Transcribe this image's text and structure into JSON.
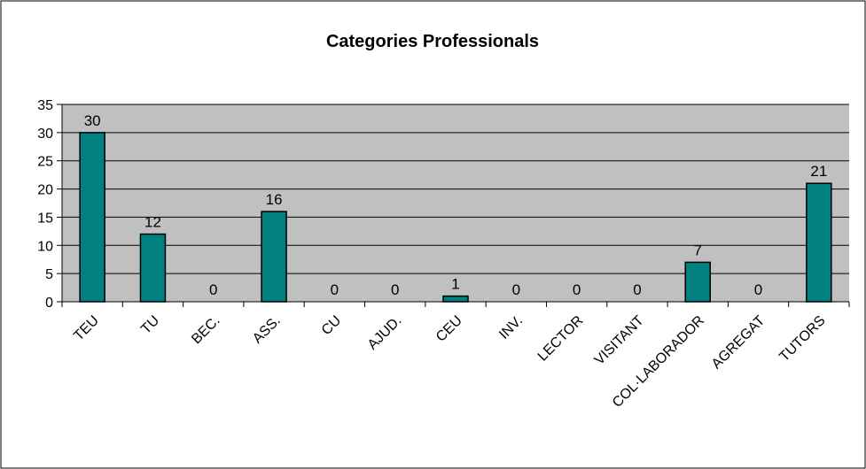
{
  "chart_data": {
    "type": "bar",
    "title": "Categories Professionals",
    "xlabel": "",
    "ylabel": "",
    "categories": [
      "TEU",
      "TU",
      "BEC.",
      "ASS.",
      "CU",
      "AJUD.",
      "CEU",
      "INV.",
      "LECTOR",
      "VISITANT",
      "COL·LABORADOR",
      "AGREGAT",
      "TUTORS"
    ],
    "values": [
      30,
      12,
      0,
      16,
      0,
      0,
      1,
      0,
      0,
      0,
      7,
      0,
      21
    ],
    "ylim": [
      0,
      35
    ],
    "yticks": [
      0,
      5,
      10,
      15,
      20,
      25,
      30,
      35
    ],
    "grid": true,
    "legend": "none",
    "data_labels": true,
    "colors": {
      "bar": "#008080",
      "bar_stroke": "#000000",
      "plot_background": "#c0c0c0",
      "gridline": "#000000"
    }
  }
}
